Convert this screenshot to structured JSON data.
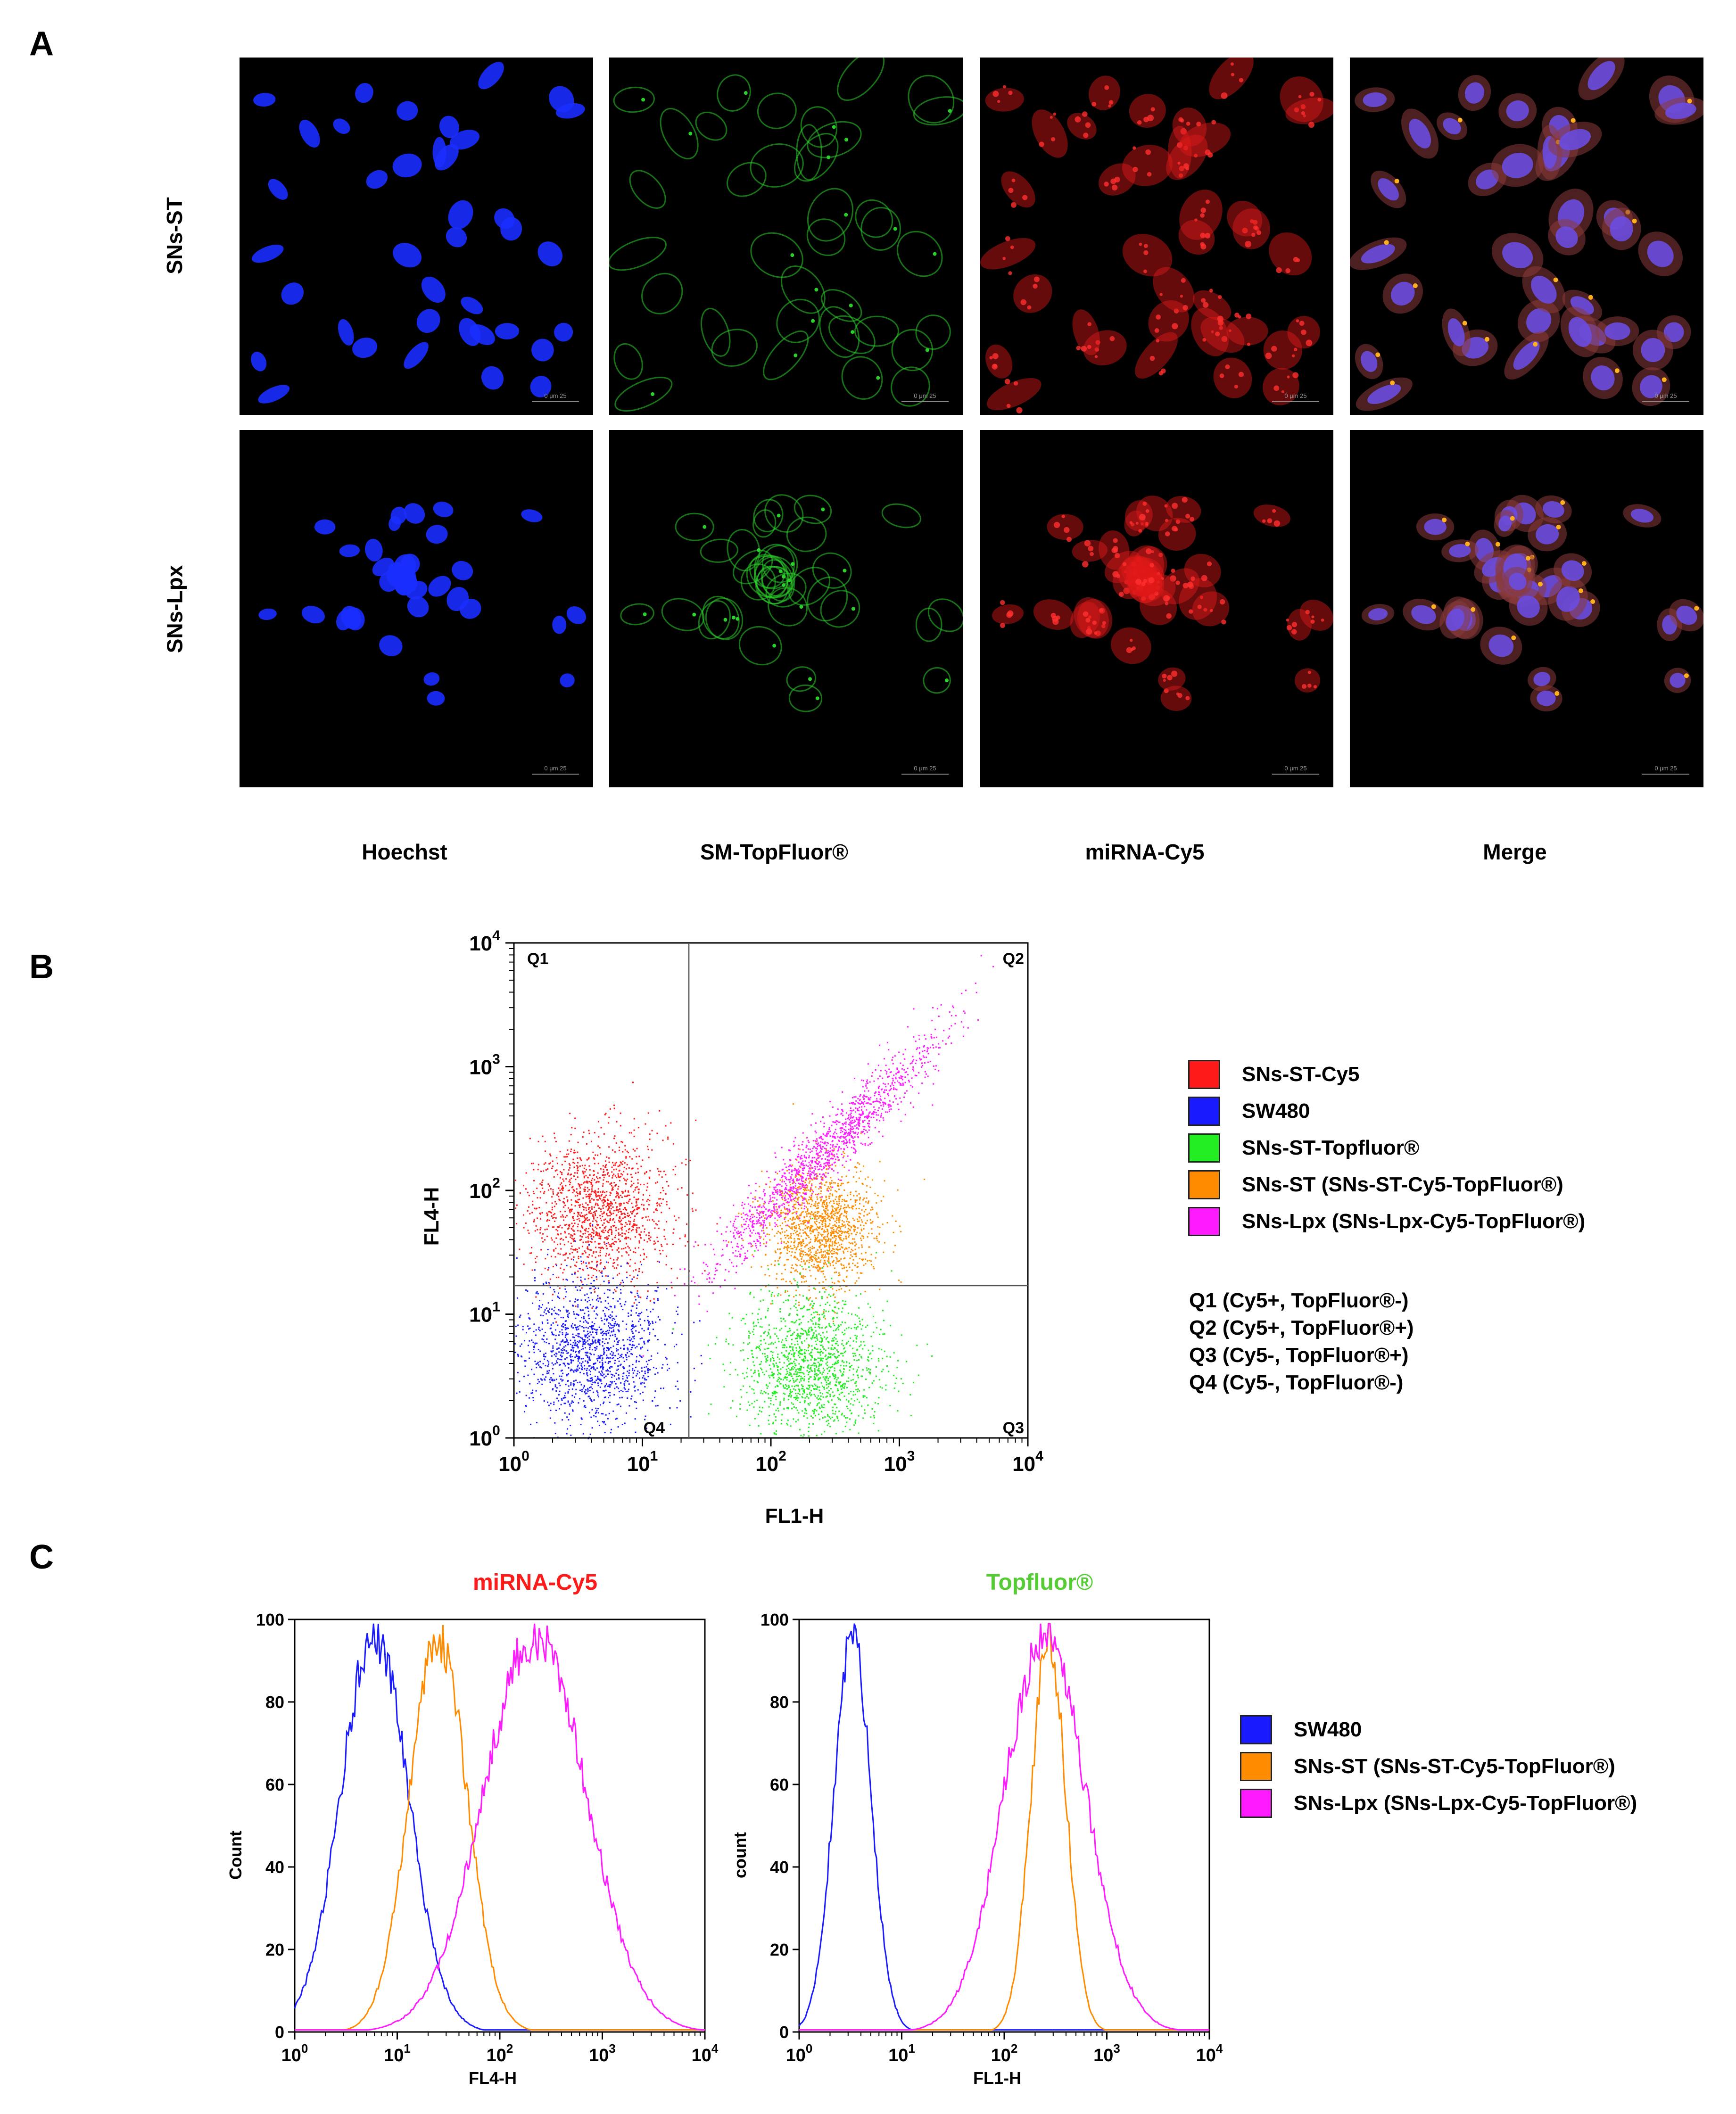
{
  "panels": {
    "a": "A",
    "b": "B",
    "c": "C"
  },
  "panel_a": {
    "row_labels": [
      "SNs-ST",
      "SNs-Lpx"
    ],
    "column_labels": [
      "Hoechst",
      "SM-TopFluor®",
      "miRNA-Cy5",
      "Merge"
    ],
    "scale_bar_text": "0 μm 25",
    "channel_colors": {
      "hoechst": "#1a2dff",
      "topfluor": "#2bd12b",
      "cy5": "#e01818",
      "merge_nucleus": "#6a4de0"
    }
  },
  "panel_b": {
    "legend": [
      {
        "label": "SNs-ST-Cy5",
        "color": "#ff1a1a"
      },
      {
        "label": "SW480",
        "color": "#1a1aff"
      },
      {
        "label": "SNs-ST-Topfluor®",
        "color": "#22ee22"
      },
      {
        "label": "SNs-ST (SNs-ST-Cy5-TopFluor®)",
        "color": "#ff8c00"
      },
      {
        "label": "SNs-Lpx (SNs-Lpx-Cy5-TopFluor®)",
        "color": "#ff1aff"
      }
    ],
    "quadrant_legend": [
      "Q1 (Cy5+, TopFluor®-)",
      "Q2 (Cy5+, TopFluor®+)",
      "Q3 (Cy5-,  TopFluor®+)",
      "Q4 (Cy5-,  TopFluor®-)"
    ]
  },
  "panel_c": {
    "legend": [
      {
        "label": "SW480",
        "color": "#1a1aff"
      },
      {
        "label": "SNs-ST (SNs-ST-Cy5-TopFluor®)",
        "color": "#ff8c00"
      },
      {
        "label": "SNs-Lpx (SNs-Lpx-Cy5-TopFluor®)",
        "color": "#ff1aff"
      }
    ]
  },
  "chart_data": [
    {
      "type": "scatter",
      "title": "",
      "xlabel": "FL1-H",
      "ylabel": "FL4-H",
      "xscale": "log",
      "yscale": "log",
      "xlim": [
        1,
        10000
      ],
      "ylim": [
        1,
        10000
      ],
      "x_ticks": [
        "10^0",
        "10^1",
        "10^2",
        "10^3",
        "10^4"
      ],
      "y_ticks": [
        "10^0",
        "10^1",
        "10^2",
        "10^3",
        "10^4"
      ],
      "quadrant_labels": [
        "Q1",
        "Q2",
        "Q3",
        "Q4"
      ],
      "gates": {
        "x": 23,
        "y": 17
      },
      "series": [
        {
          "name": "SNs-ST-Cy5",
          "color": "#ff1a1a",
          "center": [
            4.5,
            70
          ],
          "spread_log10": [
            0.28,
            0.3
          ]
        },
        {
          "name": "SW480",
          "color": "#1a1aff",
          "center": [
            4,
            5
          ],
          "spread_log10": [
            0.3,
            0.3
          ]
        },
        {
          "name": "SNs-ST-Topfluor®",
          "color": "#22ee22",
          "center": [
            200,
            4
          ],
          "spread_log10": [
            0.28,
            0.3
          ]
        },
        {
          "name": "SNs-ST (SNs-ST-Cy5-TopFluor®)",
          "color": "#ff8c00",
          "center": [
            250,
            50
          ],
          "spread_log10": [
            0.22,
            0.25
          ]
        },
        {
          "name": "SNs-Lpx (SNs-Lpx-Cy5-TopFluor®)",
          "color": "#ff1aff",
          "center": [
            250,
            200
          ],
          "spread_log10": [
            0.45,
            0.1
          ]
        }
      ]
    },
    {
      "type": "line",
      "title": "miRNA-Cy5",
      "title_color": "#ff1a1a",
      "xlabel": "FL4-H",
      "ylabel": "Count",
      "xscale": "log",
      "xlim": [
        1,
        10000
      ],
      "ylim": [
        0,
        100
      ],
      "x_ticks": [
        "10^0",
        "10^1",
        "10^2",
        "10^3",
        "10^4"
      ],
      "y_ticks": [
        "0",
        "20",
        "40",
        "60",
        "80",
        "100"
      ],
      "series": [
        {
          "name": "SW480",
          "color": "#1a1aff",
          "peak_x": 6,
          "width_log10": 0.33
        },
        {
          "name": "SNs-ST (SNs-ST-Cy5-TopFluor®)",
          "color": "#ff8c00",
          "peak_x": 25,
          "width_log10": 0.28
        },
        {
          "name": "SNs-Lpx (SNs-Lpx-Cy5-TopFluor®)",
          "color": "#ff1aff",
          "peak_x": 220,
          "width_log10": 0.5
        }
      ]
    },
    {
      "type": "line",
      "title": "Topfluor®",
      "title_color": "#55cc33",
      "xlabel": "FL1-H",
      "ylabel": "count",
      "xscale": "log",
      "xlim": [
        1,
        10000
      ],
      "ylim": [
        0,
        100
      ],
      "x_ticks": [
        "10^0",
        "10^1",
        "10^2",
        "10^3",
        "10^4"
      ],
      "y_ticks": [
        "0",
        "20",
        "40",
        "60",
        "80",
        "100"
      ],
      "series": [
        {
          "name": "SW480",
          "color": "#1a1aff",
          "peak_x": 3.3,
          "width_log10": 0.18
        },
        {
          "name": "SNs-ST (SNs-ST-Cy5-TopFluor®)",
          "color": "#ff8c00",
          "peak_x": 270,
          "width_log10": 0.17
        },
        {
          "name": "SNs-Lpx (SNs-Lpx-Cy5-TopFluor®)",
          "color": "#ff1aff",
          "peak_x": 250,
          "width_log10": 0.4
        }
      ]
    }
  ]
}
